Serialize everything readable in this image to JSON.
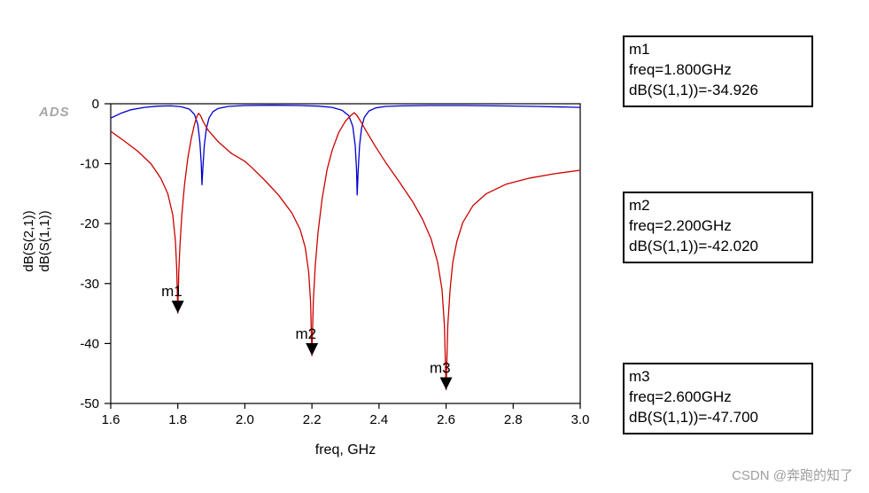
{
  "watermarks": {
    "ads_logo": "ADS",
    "csdn": "CSDN @奔跑的知了"
  },
  "axes": {
    "x_label": "freq, GHz",
    "x_min": 1.6,
    "x_max": 3.0,
    "y_min": -50,
    "y_max": 0,
    "x_ticks": [
      "1.6",
      "1.8",
      "2.0",
      "2.2",
      "2.4",
      "2.6",
      "2.8",
      "3.0"
    ],
    "y_ticks": [
      "0",
      "-10",
      "-20",
      "-30",
      "-40",
      "-50"
    ],
    "y_axis_labels": [
      {
        "text": "dB(S(2,1))",
        "color": "#0000CC"
      },
      {
        "text": "dB(S(1,1))",
        "color": "#CC0000"
      }
    ]
  },
  "chart_data": {
    "type": "line",
    "title": "",
    "xlabel": "freq, GHz",
    "ylabel": "dB(S(2,1)), dB(S(1,1))",
    "xlim": [
      1.6,
      3.0
    ],
    "ylim": [
      -50,
      0
    ],
    "grid": false,
    "series": [
      {
        "name": "dB(S(2,1))",
        "color": "#0000CC",
        "points": [
          [
            1.6,
            -2.4
          ],
          [
            1.63,
            -1.6
          ],
          [
            1.66,
            -1.0
          ],
          [
            1.7,
            -0.6
          ],
          [
            1.74,
            -0.4
          ],
          [
            1.78,
            -0.35
          ],
          [
            1.81,
            -0.5
          ],
          [
            1.835,
            -0.9
          ],
          [
            1.85,
            -1.8
          ],
          [
            1.86,
            -3.5
          ],
          [
            1.866,
            -6.5
          ],
          [
            1.87,
            -10.0
          ],
          [
            1.872,
            -13.5
          ],
          [
            1.875,
            -10.5
          ],
          [
            1.879,
            -7.0
          ],
          [
            1.885,
            -4.2
          ],
          [
            1.893,
            -2.4
          ],
          [
            1.905,
            -1.3
          ],
          [
            1.92,
            -0.8
          ],
          [
            1.95,
            -0.45
          ],
          [
            2.0,
            -0.3
          ],
          [
            2.08,
            -0.25
          ],
          [
            2.16,
            -0.3
          ],
          [
            2.22,
            -0.4
          ],
          [
            2.26,
            -0.6
          ],
          [
            2.29,
            -1.1
          ],
          [
            2.31,
            -2.0
          ],
          [
            2.322,
            -3.8
          ],
          [
            2.329,
            -7.0
          ],
          [
            2.333,
            -11.0
          ],
          [
            2.335,
            -15.2
          ],
          [
            2.338,
            -11.0
          ],
          [
            2.342,
            -7.0
          ],
          [
            2.348,
            -4.0
          ],
          [
            2.356,
            -2.3
          ],
          [
            2.37,
            -1.2
          ],
          [
            2.39,
            -0.7
          ],
          [
            2.42,
            -0.45
          ],
          [
            2.47,
            -0.35
          ],
          [
            2.55,
            -0.3
          ],
          [
            2.65,
            -0.3
          ],
          [
            2.75,
            -0.35
          ],
          [
            2.87,
            -0.45
          ],
          [
            3.0,
            -0.6
          ]
        ]
      },
      {
        "name": "dB(S(1,1))",
        "color": "#CC0000",
        "points": [
          [
            1.6,
            -4.6
          ],
          [
            1.64,
            -6.2
          ],
          [
            1.68,
            -7.9
          ],
          [
            1.72,
            -10.0
          ],
          [
            1.75,
            -12.5
          ],
          [
            1.77,
            -15.0
          ],
          [
            1.785,
            -18.5
          ],
          [
            1.793,
            -23.0
          ],
          [
            1.797,
            -28.0
          ],
          [
            1.8,
            -34.926
          ],
          [
            1.803,
            -28.0
          ],
          [
            1.807,
            -23.0
          ],
          [
            1.812,
            -18.5
          ],
          [
            1.82,
            -13.5
          ],
          [
            1.83,
            -9.0
          ],
          [
            1.84,
            -5.8
          ],
          [
            1.85,
            -3.4
          ],
          [
            1.857,
            -2.1
          ],
          [
            1.862,
            -1.6
          ],
          [
            1.868,
            -2.0
          ],
          [
            1.875,
            -2.9
          ],
          [
            1.89,
            -4.4
          ],
          [
            1.92,
            -6.3
          ],
          [
            1.96,
            -8.3
          ],
          [
            2.0,
            -9.6
          ],
          [
            2.02,
            -10.6
          ],
          [
            2.06,
            -12.8
          ],
          [
            2.1,
            -15.2
          ],
          [
            2.14,
            -18.2
          ],
          [
            2.165,
            -21.0
          ],
          [
            2.18,
            -24.0
          ],
          [
            2.19,
            -28.0
          ],
          [
            2.196,
            -33.0
          ],
          [
            2.2,
            -42.02
          ],
          [
            2.204,
            -33.0
          ],
          [
            2.21,
            -27.0
          ],
          [
            2.218,
            -21.5
          ],
          [
            2.23,
            -16.0
          ],
          [
            2.245,
            -11.0
          ],
          [
            2.26,
            -7.8
          ],
          [
            2.28,
            -4.8
          ],
          [
            2.3,
            -2.9
          ],
          [
            2.315,
            -2.0
          ],
          [
            2.326,
            -1.5
          ],
          [
            2.335,
            -2.0
          ],
          [
            2.345,
            -2.9
          ],
          [
            2.36,
            -4.4
          ],
          [
            2.39,
            -7.2
          ],
          [
            2.42,
            -9.8
          ],
          [
            2.46,
            -13.0
          ],
          [
            2.5,
            -16.3
          ],
          [
            2.53,
            -19.3
          ],
          [
            2.555,
            -22.5
          ],
          [
            2.575,
            -26.5
          ],
          [
            2.588,
            -31.0
          ],
          [
            2.595,
            -37.0
          ],
          [
            2.6,
            -47.7
          ],
          [
            2.605,
            -37.0
          ],
          [
            2.612,
            -31.0
          ],
          [
            2.62,
            -26.5
          ],
          [
            2.632,
            -23.0
          ],
          [
            2.65,
            -19.8
          ],
          [
            2.68,
            -17.0
          ],
          [
            2.72,
            -15.0
          ],
          [
            2.78,
            -13.4
          ],
          [
            2.85,
            -12.4
          ],
          [
            2.92,
            -11.7
          ],
          [
            3.0,
            -11.1
          ]
        ]
      }
    ],
    "markers": [
      {
        "label": "m1",
        "freq": 1.8,
        "value": -34.926
      },
      {
        "label": "m2",
        "freq": 2.2,
        "value": -42.02
      },
      {
        "label": "m3",
        "freq": 2.6,
        "value": -47.7
      }
    ]
  },
  "marker_boxes": [
    {
      "line1": "m1",
      "line2": "freq=1.800GHz",
      "line3": "dB(S(1,1))=-34.926"
    },
    {
      "line1": "m2",
      "line2": "freq=2.200GHz",
      "line3": "dB(S(1,1))=-42.020"
    },
    {
      "line1": "m3",
      "line2": "freq=2.600GHz",
      "line3": "dB(S(1,1))=-47.700"
    }
  ]
}
